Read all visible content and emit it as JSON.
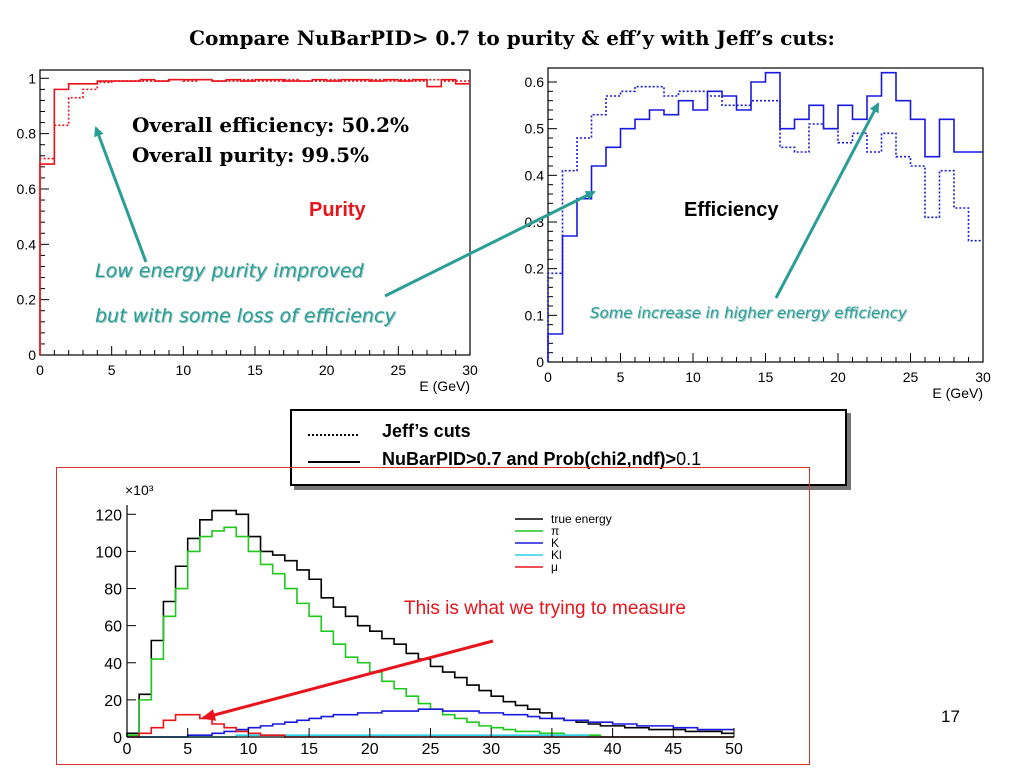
{
  "slide": {
    "title": "Compare NuBarPID> 0.7 to purity & eff’y with Jeff’s cuts:",
    "page_number": "17"
  },
  "purity_panel": {
    "label": "Purity",
    "efficiency_text": "Overall efficiency: 50.2%",
    "purity_text": "Overall purity: 99.5%",
    "note_line1": "Low energy purity improved",
    "note_line2": "but with some loss of efficiency",
    "xlabel": "E (GeV)",
    "label_color": "#e8141c",
    "note_color": "#2a9d96"
  },
  "efficiency_panel": {
    "label": "Efficiency",
    "note": "Some increase in higher energy efficiency",
    "xlabel": "E (GeV)"
  },
  "legend": {
    "dotted_label": "Jeff’s cuts",
    "solid_label_bold": "NuBarPID>0.7 and Prob(chi2,ndf)>",
    "solid_label_tail": "0.1"
  },
  "spectrum_panel": {
    "annotation": "This is what we trying to measure",
    "annotation_color": "#e8141c",
    "exponent_label": "×10³"
  },
  "chart_data": [
    {
      "type": "line",
      "name": "purity",
      "xlabel": "E (GeV)",
      "ylabel": "",
      "xlim": [
        0,
        30
      ],
      "ylim": [
        0,
        1.03
      ],
      "x_ticks": [
        "0",
        "5",
        "10",
        "15",
        "20",
        "25",
        "30"
      ],
      "y_ticks": [
        "0",
        "0.2",
        "0.4",
        "0.6",
        "0.8",
        "1"
      ],
      "bin_edges": [
        0,
        1,
        2,
        3,
        4,
        5,
        6,
        7,
        8,
        9,
        10,
        11,
        12,
        13,
        14,
        15,
        16,
        17,
        18,
        19,
        20,
        21,
        22,
        23,
        24,
        25,
        26,
        27,
        28,
        29,
        30
      ],
      "series": [
        {
          "style": "solid",
          "color": "#e8141c",
          "values": [
            0.69,
            0.96,
            0.98,
            0.98,
            0.99,
            0.99,
            0.99,
            0.995,
            0.99,
            0.995,
            0.995,
            0.995,
            0.99,
            0.995,
            0.99,
            0.995,
            0.995,
            0.99,
            0.99,
            0.995,
            0.99,
            0.995,
            0.995,
            0.99,
            0.995,
            0.99,
            0.995,
            0.97,
            0.995,
            0.98
          ]
        },
        {
          "style": "dotted",
          "color": "#e8141c",
          "values": [
            0.71,
            0.83,
            0.93,
            0.96,
            0.985,
            0.99,
            0.99,
            0.99,
            0.99,
            0.995,
            0.99,
            0.995,
            0.99,
            0.99,
            0.995,
            0.99,
            0.99,
            0.995,
            0.99,
            0.99,
            0.995,
            0.99,
            0.99,
            0.995,
            0.99,
            0.995,
            0.99,
            0.995,
            0.99,
            0.99
          ]
        }
      ]
    },
    {
      "type": "line",
      "name": "efficiency",
      "xlabel": "E (GeV)",
      "ylabel": "",
      "xlim": [
        0,
        30
      ],
      "ylim": [
        0,
        0.63
      ],
      "x_ticks": [
        "0",
        "5",
        "10",
        "15",
        "20",
        "25",
        "30"
      ],
      "y_ticks": [
        "0",
        "0.1",
        "0.2",
        "0.3",
        "0.4",
        "0.5",
        "0.6"
      ],
      "bin_edges": [
        0,
        1,
        2,
        3,
        4,
        5,
        6,
        7,
        8,
        9,
        10,
        11,
        12,
        13,
        14,
        15,
        16,
        17,
        18,
        19,
        20,
        21,
        22,
        23,
        24,
        25,
        26,
        27,
        28,
        29,
        30
      ],
      "series": [
        {
          "style": "solid",
          "color": "#1a1adf",
          "values": [
            0.06,
            0.27,
            0.35,
            0.42,
            0.46,
            0.5,
            0.52,
            0.54,
            0.53,
            0.56,
            0.54,
            0.58,
            0.57,
            0.54,
            0.6,
            0.62,
            0.5,
            0.52,
            0.55,
            0.5,
            0.55,
            0.52,
            0.57,
            0.62,
            0.56,
            0.52,
            0.44,
            0.52,
            0.45,
            0.45
          ]
        },
        {
          "style": "dotted",
          "color": "#1a1adf",
          "values": [
            0.19,
            0.41,
            0.48,
            0.53,
            0.57,
            0.58,
            0.59,
            0.59,
            0.57,
            0.58,
            0.58,
            0.57,
            0.55,
            0.55,
            0.56,
            0.56,
            0.46,
            0.45,
            0.51,
            0.5,
            0.47,
            0.49,
            0.45,
            0.49,
            0.44,
            0.42,
            0.31,
            0.41,
            0.33,
            0.26
          ]
        }
      ]
    },
    {
      "type": "line",
      "name": "energy spectrum",
      "xlabel": "",
      "ylabel": "",
      "y_multiplier": "×10³",
      "xlim": [
        0,
        50
      ],
      "ylim": [
        0,
        125
      ],
      "x_ticks": [
        "0",
        "5",
        "10",
        "15",
        "20",
        "25",
        "30",
        "35",
        "40",
        "45",
        "50"
      ],
      "y_ticks": [
        "0",
        "20",
        "40",
        "60",
        "80",
        "100",
        "120"
      ],
      "bin_width": 1,
      "legend_position": "top-right",
      "series": [
        {
          "name": "true energy",
          "color": "#000000",
          "values": [
            2,
            23,
            52,
            73,
            92,
            107,
            117,
            122,
            122,
            120,
            108,
            100,
            98,
            95,
            90,
            85,
            75,
            70,
            65,
            60,
            57,
            53,
            50,
            45,
            42,
            38,
            35,
            32,
            28,
            25,
            22,
            19,
            17,
            15,
            13,
            10,
            9,
            8,
            7,
            6,
            6,
            5,
            5,
            4,
            4,
            4,
            3,
            3,
            3,
            2
          ]
        },
        {
          "name": "π",
          "color": "#1ec81e",
          "values": [
            1,
            20,
            42,
            65,
            80,
            100,
            108,
            111,
            113,
            108,
            100,
            93,
            88,
            80,
            72,
            65,
            57,
            50,
            43,
            40,
            35,
            30,
            26,
            22,
            18,
            15,
            12,
            10,
            8,
            6,
            5,
            4,
            3,
            3,
            2,
            2,
            1,
            1,
            1,
            0,
            0,
            0,
            0,
            0,
            0,
            0,
            0,
            0,
            0,
            0
          ]
        },
        {
          "name": "K",
          "color": "#1a1adf",
          "values": [
            0,
            0,
            0,
            0,
            0,
            1,
            1,
            2,
            3,
            4,
            5,
            6,
            7,
            8,
            9,
            10,
            11,
            12,
            12,
            13,
            13,
            14,
            14,
            14,
            15,
            15,
            14,
            14,
            14,
            13,
            13,
            12,
            12,
            11,
            10,
            10,
            9,
            9,
            8,
            8,
            7,
            7,
            6,
            6,
            6,
            5,
            5,
            4,
            4,
            4
          ]
        },
        {
          "name": "Kl",
          "color": "#2ad1e8",
          "values": [
            0,
            0,
            0,
            0,
            0,
            0,
            0,
            0,
            0,
            1,
            1,
            1,
            1,
            1,
            1,
            1,
            1,
            1,
            1,
            1,
            1,
            1,
            1,
            1,
            1,
            1,
            1,
            1,
            1,
            1,
            1,
            1,
            1,
            1,
            1,
            1,
            1,
            1,
            0,
            0,
            0,
            0,
            0,
            0,
            0,
            0,
            0,
            0,
            0,
            0
          ]
        },
        {
          "name": "μ",
          "color": "#e8141c",
          "values": [
            0,
            2,
            5,
            9,
            12,
            12,
            10,
            7,
            5,
            3,
            2,
            1,
            1,
            0,
            0,
            0,
            0,
            0,
            0,
            0,
            0,
            0,
            0,
            0,
            0,
            0,
            0,
            0,
            0,
            0,
            0,
            0,
            0,
            0,
            0,
            0,
            0,
            0,
            0,
            0,
            0,
            0,
            0,
            0,
            0,
            0,
            0,
            0,
            0,
            0
          ]
        }
      ]
    }
  ]
}
